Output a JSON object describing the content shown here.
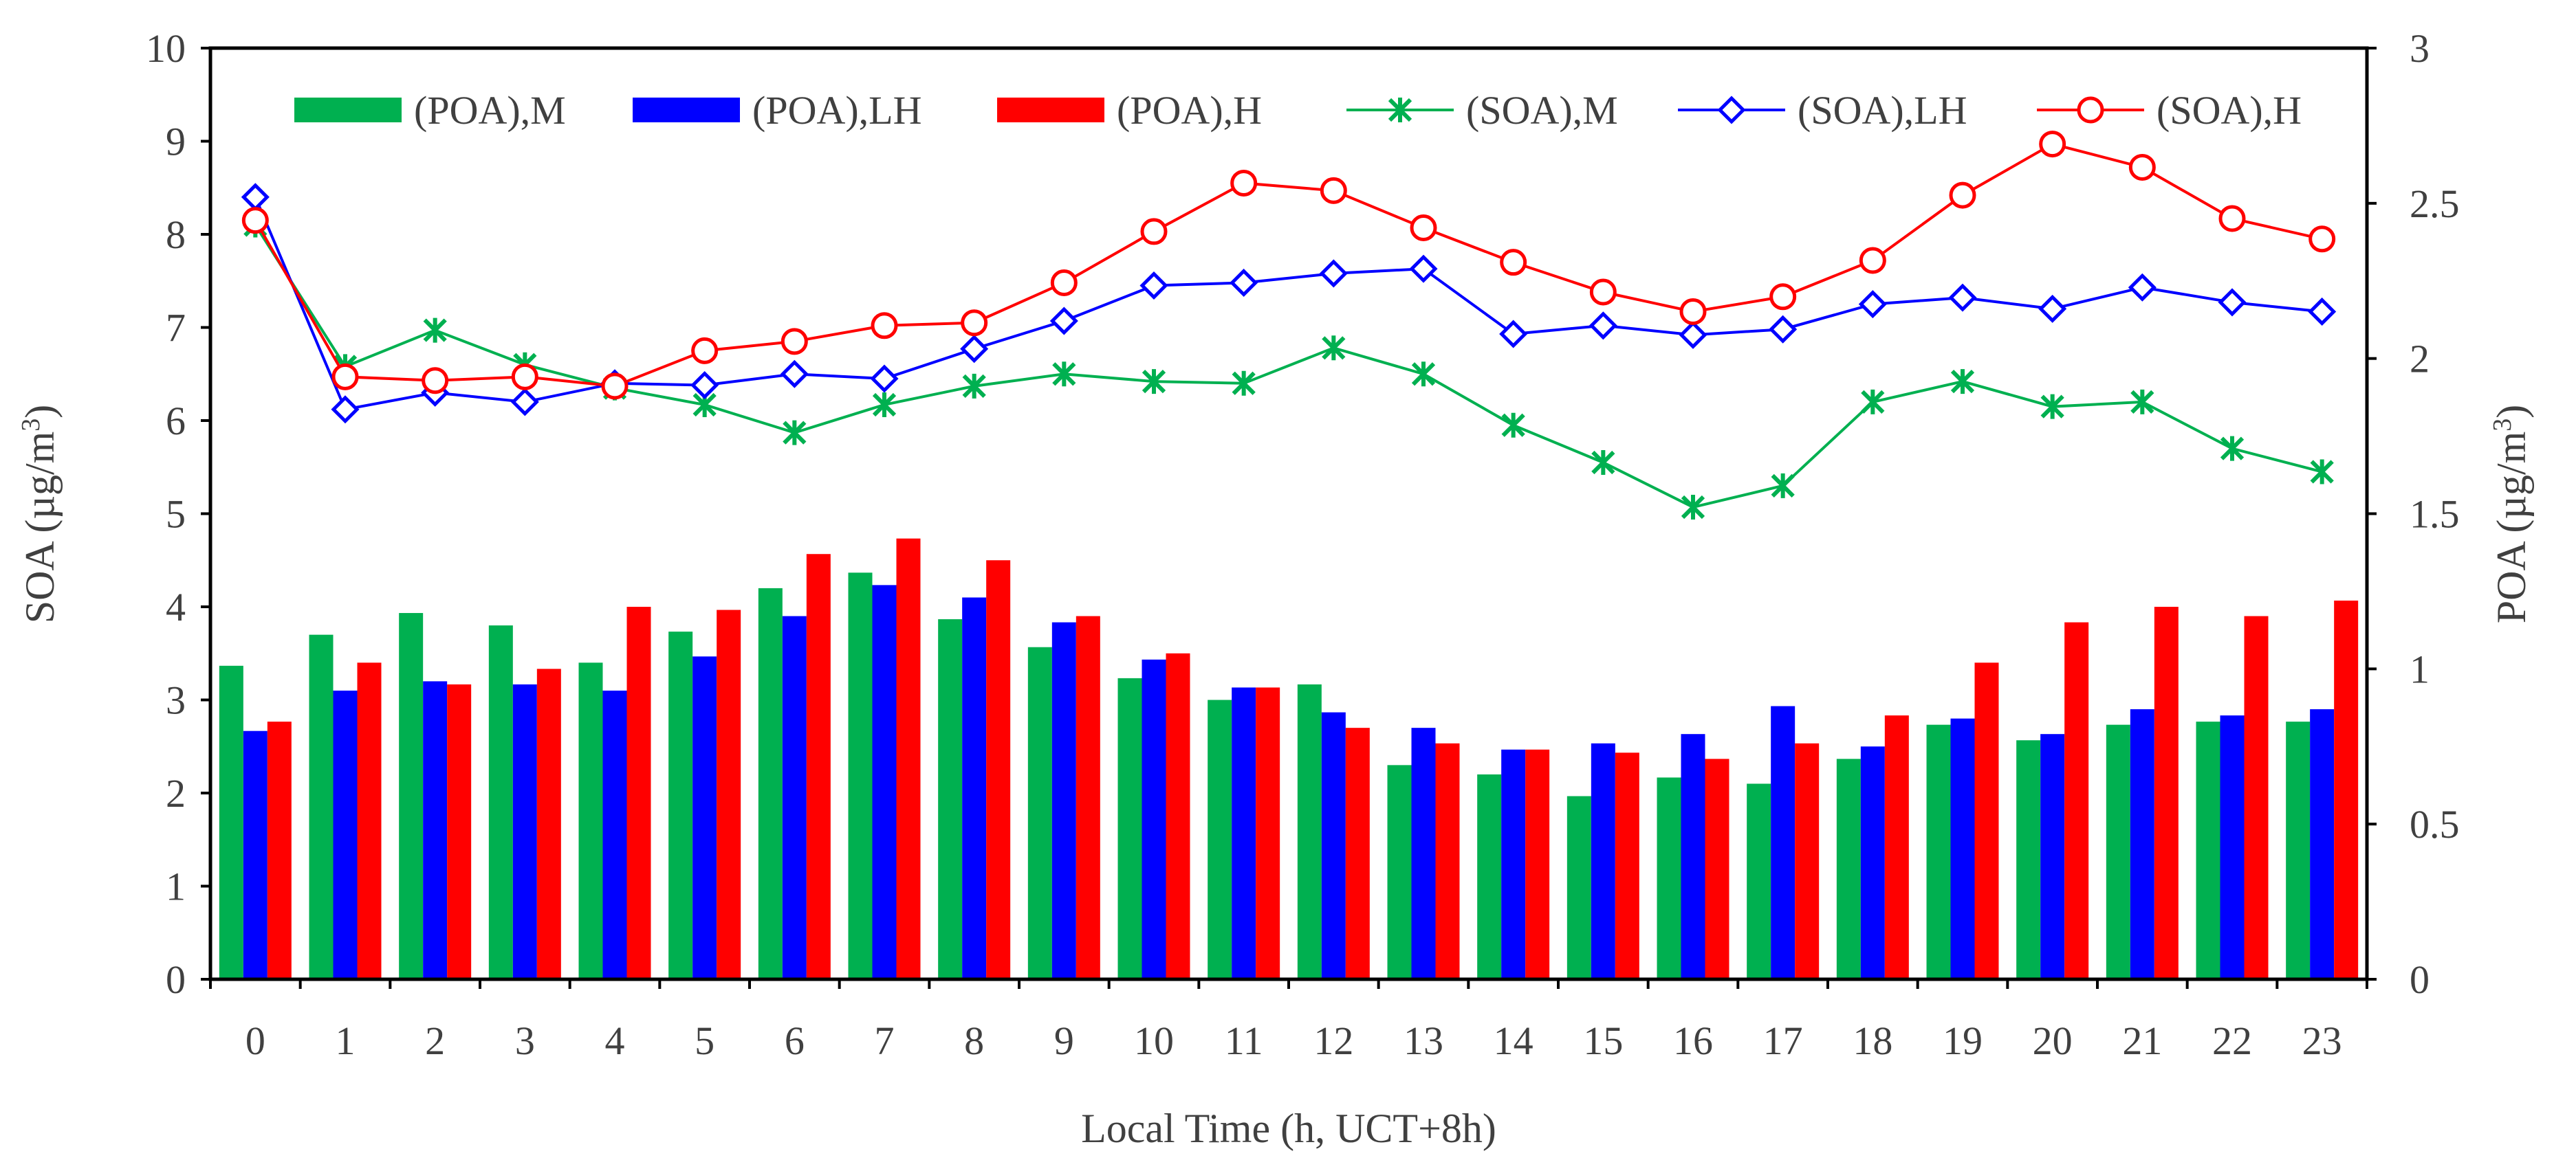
{
  "chart_data": {
    "type": "bar+line (dual axis)",
    "categories": [
      "0",
      "1",
      "2",
      "3",
      "4",
      "5",
      "6",
      "7",
      "8",
      "9",
      "10",
      "11",
      "12",
      "13",
      "14",
      "15",
      "16",
      "17",
      "18",
      "19",
      "20",
      "21",
      "22",
      "23"
    ],
    "xlabel": "Local Time (h, UCT+8h)",
    "ylabel_left": {
      "text": "SOA (µg/m",
      "sup": "3",
      "end": ")"
    },
    "ylabel_right": {
      "text": "POA (µg/m",
      "sup": "3",
      "end": ")"
    },
    "y_left": {
      "min": 0,
      "max": 10,
      "ticks": [
        "0",
        "1",
        "2",
        "3",
        "4",
        "5",
        "6",
        "7",
        "8",
        "9",
        "10"
      ]
    },
    "y_right": {
      "min": 0,
      "max": 3,
      "ticks": [
        "0",
        "0.5",
        "1",
        "1.5",
        "2",
        "2.5",
        "3"
      ]
    },
    "bar_series": [
      {
        "name": "(POA),M",
        "color": "#00b050",
        "axis": "right",
        "values": [
          1.01,
          1.11,
          1.18,
          1.14,
          1.02,
          1.12,
          1.26,
          1.31,
          1.16,
          1.07,
          0.97,
          0.9,
          0.95,
          0.69,
          0.66,
          0.59,
          0.65,
          0.63,
          0.71,
          0.82,
          0.77,
          0.82,
          0.83,
          0.83
        ]
      },
      {
        "name": "(POA),LH",
        "color": "#0000ff",
        "axis": "right",
        "values": [
          0.8,
          0.93,
          0.96,
          0.95,
          0.93,
          1.04,
          1.17,
          1.27,
          1.23,
          1.15,
          1.03,
          0.94,
          0.86,
          0.81,
          0.74,
          0.76,
          0.79,
          0.88,
          0.75,
          0.84,
          0.79,
          0.87,
          0.85,
          0.87
        ]
      },
      {
        "name": "(POA),H",
        "color": "#ff0000",
        "axis": "right",
        "values": [
          0.83,
          1.02,
          0.95,
          1.0,
          1.2,
          1.19,
          1.37,
          1.42,
          1.35,
          1.17,
          1.05,
          0.94,
          0.81,
          0.76,
          0.74,
          0.73,
          0.71,
          0.76,
          0.85,
          1.02,
          1.15,
          1.2,
          1.17,
          1.22
        ]
      }
    ],
    "line_series": [
      {
        "name": "(SOA),M",
        "color": "#00b050",
        "marker": "x-star",
        "axis": "left",
        "values": [
          8.1,
          6.58,
          6.97,
          6.6,
          6.35,
          6.17,
          5.87,
          6.17,
          6.37,
          6.5,
          6.42,
          6.4,
          6.78,
          6.5,
          5.95,
          5.55,
          5.07,
          5.3,
          6.2,
          6.42,
          6.15,
          6.2,
          5.7,
          5.45
        ]
      },
      {
        "name": "(SOA),LH",
        "color": "#0000ff",
        "marker": "diamond",
        "axis": "left",
        "values": [
          8.4,
          6.12,
          6.3,
          6.2,
          6.4,
          6.38,
          6.5,
          6.45,
          6.77,
          7.07,
          7.45,
          7.48,
          7.58,
          7.63,
          6.93,
          7.02,
          6.92,
          6.98,
          7.25,
          7.32,
          7.2,
          7.43,
          7.27,
          7.17
        ]
      },
      {
        "name": "(SOA),H",
        "color": "#ff0000",
        "marker": "circle",
        "axis": "left",
        "values": [
          8.15,
          6.47,
          6.43,
          6.47,
          6.37,
          6.75,
          6.85,
          7.02,
          7.05,
          7.48,
          8.03,
          8.55,
          8.47,
          8.07,
          7.7,
          7.38,
          7.17,
          7.33,
          7.72,
          8.42,
          8.97,
          8.72,
          8.17,
          7.95
        ]
      }
    ],
    "legend": [
      "(POA),M",
      "(POA),LH",
      "(POA),H",
      "(SOA),M",
      "(SOA),LH",
      "(SOA),H"
    ],
    "legend_position": "top, inside plot",
    "grid": false
  }
}
